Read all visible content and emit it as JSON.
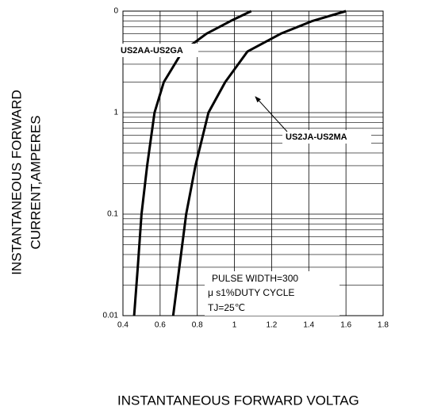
{
  "chart_data": {
    "type": "line",
    "log_y": true,
    "grid": true,
    "minor_grid": true,
    "x_label": "INSTANTANEOUS FORWARD VOLTAG",
    "y_label": [
      "INSTANTANEOUS FORWARD",
      "CURRENT,AMPERES"
    ],
    "xlim": [
      0.4,
      1.8
    ],
    "xticks": [
      0.4,
      0.6,
      0.8,
      1.0,
      1.2,
      1.4,
      1.6,
      1.8
    ],
    "ylim": [
      0.01,
      10
    ],
    "yticks": [
      0.01,
      0.1,
      1,
      {
        "value": 10,
        "label": "0"
      }
    ],
    "series": [
      {
        "name": "US2AA-US2GA",
        "color": "#000000",
        "x": [
          0.46,
          0.48,
          0.5,
          0.53,
          0.57,
          0.62,
          0.72,
          0.85,
          0.98,
          1.09
        ],
        "values": [
          0.01,
          0.03,
          0.1,
          0.3,
          1,
          2,
          4,
          6,
          8,
          10
        ]
      },
      {
        "name": "US2JA-US2MA",
        "color": "#000000",
        "x": [
          0.67,
          0.74,
          0.79,
          0.86,
          0.95,
          1.07,
          1.25,
          1.42,
          1.6
        ],
        "values": [
          0.01,
          0.1,
          0.3,
          1,
          2,
          4,
          6,
          8,
          10
        ]
      }
    ],
    "note": [
      "PULSE WIDTH=300",
      "μ s1%DUTY CYCLE",
      "TJ=25℃"
    ]
  }
}
